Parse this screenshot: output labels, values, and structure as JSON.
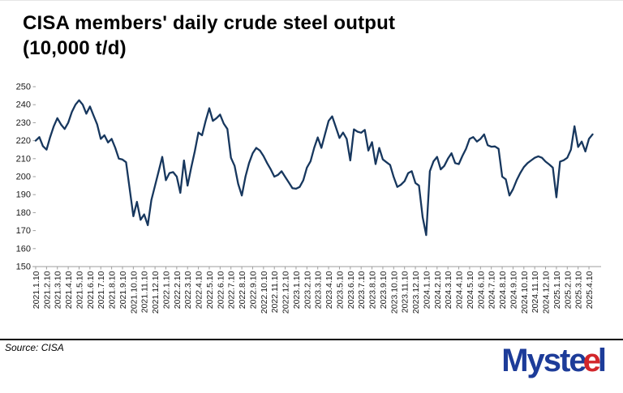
{
  "title": {
    "line1": "CISA members' daily crude steel output",
    "line2": "(10,000 t/d)"
  },
  "source_note": "Source: CISA",
  "logo": {
    "parts": [
      "Myst",
      "e",
      "e",
      "l"
    ],
    "blue": "#1d3c99",
    "red": "#d2262b"
  },
  "chart_data": {
    "type": "line",
    "title": "CISA members' daily crude steel output (10,000 t/d)",
    "xlabel": "",
    "ylabel": "",
    "ylim": [
      150,
      250
    ],
    "y_ticks": [
      150,
      160,
      170,
      180,
      190,
      200,
      210,
      220,
      230,
      240,
      250
    ],
    "grid": false,
    "legend": "none",
    "line_color": "#17375e",
    "axis_color": "#9e9e9e",
    "points_per_tick": 3,
    "x_tick_labels": [
      "2021.1.10",
      "2021.2.10",
      "2021.3.10",
      "2021.4.10",
      "2021.5.10",
      "2021.6.10",
      "2021.7.10",
      "2021.8.10",
      "2021.9.10",
      "2021.10.10",
      "2021.11.10",
      "2021.12.10",
      "2022.1.10",
      "2022.2.10",
      "2022.3.10",
      "2022.4.10",
      "2022.5.10",
      "2022.6.10",
      "2022.7.10",
      "2022.8.10",
      "2022.9.10",
      "2022.10.10",
      "2022.11.10",
      "2022.12.10",
      "2023.1.10",
      "2023.2.10",
      "2023.3.10",
      "2023.4.10",
      "2023.5.10",
      "2023.6.10",
      "2023.7.10",
      "2023.8.10",
      "2023.9.10",
      "2023.10.10",
      "2023.11.10",
      "2023.12.10",
      "2024.1.10",
      "2024.2.10",
      "2024.3.10",
      "2024.4.10",
      "2024.5.10",
      "2024.6.10",
      "2024.7.10",
      "2024.8.10",
      "2024.9.10",
      "2024.10.10",
      "2024.11.10",
      "2024.12.10",
      "2025.1.10",
      "2025.2.10",
      "2025.3.10",
      "2025.4.10"
    ],
    "series": [
      {
        "name": "CISA members' daily crude steel output (10,000 t/d)",
        "x": [
          "2021.1.10",
          "2021.1.20",
          "2021.1.31",
          "2021.2.10",
          "2021.2.20",
          "2021.2.28",
          "2021.3.10",
          "2021.3.20",
          "2021.3.31",
          "2021.4.10",
          "2021.4.20",
          "2021.4.30",
          "2021.5.10",
          "2021.5.20",
          "2021.5.31",
          "2021.6.10",
          "2021.6.20",
          "2021.6.30",
          "2021.7.10",
          "2021.7.20",
          "2021.7.31",
          "2021.8.10",
          "2021.8.20",
          "2021.8.31",
          "2021.9.10",
          "2021.9.20",
          "2021.9.30",
          "2021.10.10",
          "2021.10.20",
          "2021.10.31",
          "2021.11.10",
          "2021.11.20",
          "2021.11.30",
          "2021.12.10",
          "2021.12.20",
          "2021.12.31",
          "2022.1.10",
          "2022.1.20",
          "2022.1.31",
          "2022.2.10",
          "2022.2.20",
          "2022.2.28",
          "2022.3.10",
          "2022.3.20",
          "2022.3.31",
          "2022.4.10",
          "2022.4.20",
          "2022.4.30",
          "2022.5.10",
          "2022.5.20",
          "2022.5.31",
          "2022.6.10",
          "2022.6.20",
          "2022.6.30",
          "2022.7.10",
          "2022.7.20",
          "2022.7.31",
          "2022.8.10",
          "2022.8.20",
          "2022.8.31",
          "2022.9.10",
          "2022.9.20",
          "2022.9.30",
          "2022.10.10",
          "2022.10.20",
          "2022.10.31",
          "2022.11.10",
          "2022.11.20",
          "2022.11.30",
          "2022.12.10",
          "2022.12.20",
          "2022.12.31",
          "2023.1.10",
          "2023.1.20",
          "2023.1.31",
          "2023.2.10",
          "2023.2.20",
          "2023.2.28",
          "2023.3.10",
          "2023.3.20",
          "2023.3.31",
          "2023.4.10",
          "2023.4.20",
          "2023.4.30",
          "2023.5.10",
          "2023.5.20",
          "2023.5.31",
          "2023.6.10",
          "2023.6.20",
          "2023.6.30",
          "2023.7.10",
          "2023.7.20",
          "2023.7.31",
          "2023.8.10",
          "2023.8.20",
          "2023.8.31",
          "2023.9.10",
          "2023.9.20",
          "2023.9.30",
          "2023.10.10",
          "2023.10.20",
          "2023.10.31",
          "2023.11.10",
          "2023.11.20",
          "2023.11.30",
          "2023.12.10",
          "2023.12.20",
          "2023.12.31",
          "2024.1.10",
          "2024.1.20",
          "2024.1.31",
          "2024.2.10",
          "2024.2.20",
          "2024.2.29",
          "2024.3.10",
          "2024.3.20",
          "2024.3.31",
          "2024.4.10",
          "2024.4.20",
          "2024.4.30",
          "2024.5.10",
          "2024.5.20",
          "2024.5.31",
          "2024.6.10",
          "2024.6.20",
          "2024.6.30",
          "2024.7.10",
          "2024.7.20",
          "2024.7.31",
          "2024.8.10",
          "2024.8.20",
          "2024.8.31",
          "2024.9.10",
          "2024.9.20",
          "2024.9.30",
          "2024.10.10",
          "2024.10.20",
          "2024.10.31",
          "2024.11.10",
          "2024.11.20",
          "2024.11.30",
          "2024.12.10",
          "2024.12.20",
          "2024.12.31",
          "2025.1.10",
          "2025.1.20",
          "2025.1.31",
          "2025.2.10",
          "2025.2.20",
          "2025.2.28",
          "2025.3.10",
          "2025.3.20",
          "2025.3.31",
          "2025.4.10",
          "2025.4.20"
        ],
        "values": [
          220,
          222,
          217,
          215,
          222,
          228,
          232.5,
          229,
          226.5,
          230,
          236,
          240,
          242.5,
          240,
          235,
          239,
          234,
          229,
          221,
          223,
          219,
          221,
          216,
          210,
          209.5,
          208,
          193,
          178,
          186,
          176,
          179,
          173,
          187,
          195,
          203,
          211,
          198,
          202,
          202.5,
          200,
          191,
          209,
          195,
          205,
          214,
          224.5,
          223,
          231,
          238,
          231,
          232.5,
          234.5,
          229.5,
          226.5,
          210.5,
          206,
          196,
          189.5,
          200,
          207.5,
          213,
          216,
          214.5,
          211.5,
          207.5,
          204,
          200,
          201,
          203,
          199.8,
          196.8,
          193.6,
          193.3,
          194.3,
          198,
          205,
          208.5,
          216,
          221.8,
          216,
          223.5,
          231,
          233.5,
          227.5,
          221.5,
          224.5,
          221,
          209,
          226.3,
          225,
          224.4,
          226,
          214.5,
          219.2,
          207,
          216,
          209.6,
          208,
          206.5,
          199.8,
          194.3,
          195.5,
          197.5,
          202,
          203,
          196.5,
          195,
          177.5,
          167.5,
          203,
          208.5,
          211,
          204,
          206,
          210,
          213,
          207.5,
          207,
          211.5,
          215.5,
          221,
          222,
          219.5,
          221,
          223.5,
          217.5,
          216.6,
          216.8,
          215.5,
          200,
          198.5,
          189.5,
          193,
          198,
          202,
          205.3,
          207.5,
          209,
          210.5,
          211.3,
          210.5,
          208.4,
          206.8,
          205,
          188.5,
          208.4,
          209.1,
          210.5,
          215,
          228,
          216.5,
          219.5,
          214,
          221,
          223.5
        ]
      }
    ]
  }
}
